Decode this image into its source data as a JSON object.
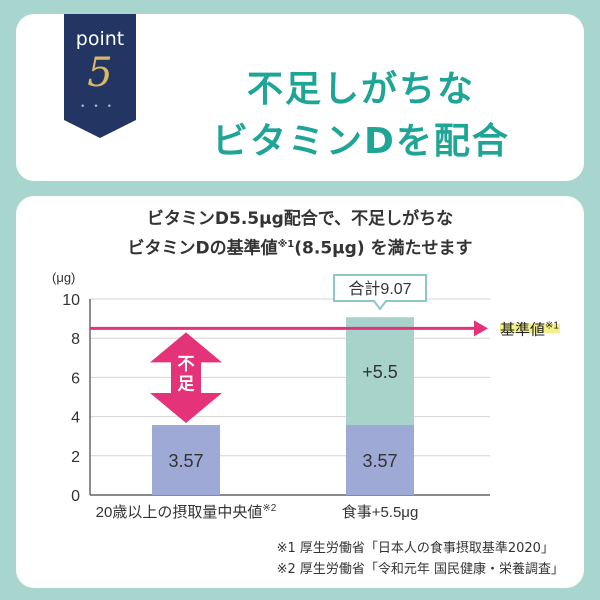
{
  "header": {
    "badge_word": "point",
    "badge_number": "5",
    "headline_line1": "不足しがちな",
    "headline_line2": "ビタミンDを配合"
  },
  "chart_title": {
    "line1": "ビタミンD5.5μg配合で、不足しがちな",
    "line2_a": "ビタミンDの基準値",
    "line2_sup": "※1",
    "line2_b": "(8.5μg) を満たせます"
  },
  "chart_data": {
    "type": "bar",
    "stacked": true,
    "unit_label": "(μg)",
    "ylim": [
      0,
      10
    ],
    "yticks": [
      0,
      2,
      4,
      6,
      8,
      10
    ],
    "categories": [
      "20歳以上の摂取量中央値",
      "食事+5.5μg"
    ],
    "category_sups": [
      "※2",
      ""
    ],
    "series": [
      {
        "values": [
          3.57,
          3.57
        ],
        "labels": [
          "3.57",
          "3.57"
        ],
        "color": "#9ea9d6"
      },
      {
        "values": [
          0,
          5.5
        ],
        "labels": [
          "",
          "+5.5"
        ],
        "color": "#a7d3cb"
      }
    ],
    "total_callout": "合計9.07",
    "reference_line": {
      "value": 8.5,
      "label": "基準値",
      "label_sup": "※1",
      "color": "#e5337a"
    },
    "shortfall_label": "不足",
    "grid": true
  },
  "footnotes": [
    "※1 厚生労働省「日本人の食事摂取基準2020」",
    "※2 厚生労働省「令和元年 国民健康・栄養調査」"
  ],
  "colors": {
    "background": "#a8d6cf",
    "headline": "#1ea596",
    "badge": "#233563",
    "badge_number": "#d9b765",
    "highlight": "#f5f08a"
  }
}
